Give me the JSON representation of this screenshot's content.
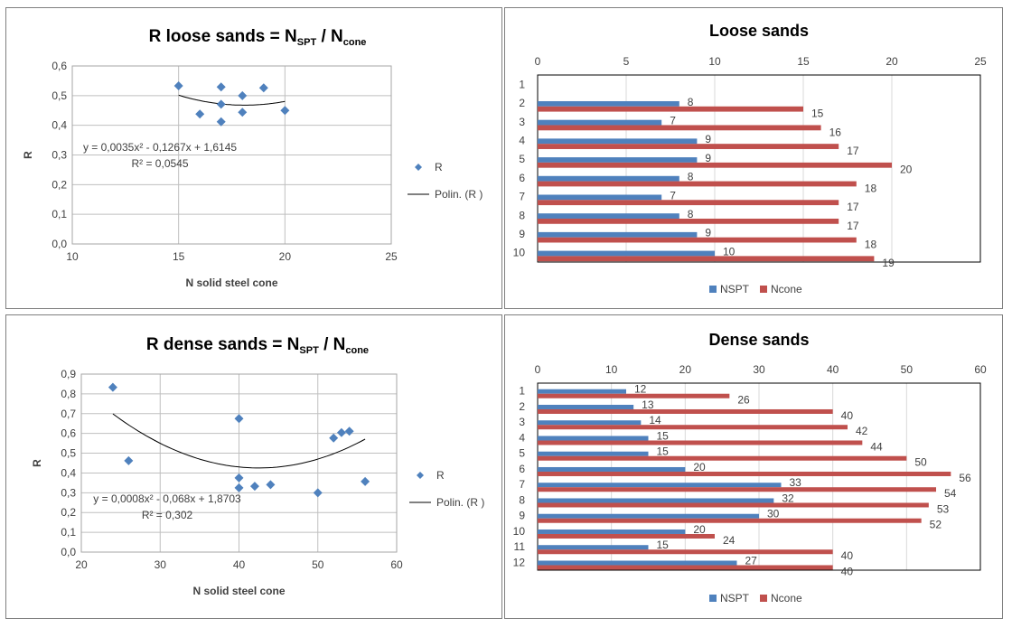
{
  "colors": {
    "nspt": "#4f81bd",
    "ncone": "#c0504d",
    "marker": "#4f81bd",
    "grid": "#bfbfbf",
    "trend": "#000000"
  },
  "chart_data": [
    {
      "type": "scatter",
      "title": {
        "main": "R loose sands = N",
        "sub1": "SPT",
        "mid": " / N",
        "sub2": "cone"
      },
      "xlabel": "N solid steel cone",
      "ylabel": "R",
      "xlim": [
        10,
        25
      ],
      "ylim": [
        0,
        0.6
      ],
      "xticks": [
        "10",
        "15",
        "20",
        "25"
      ],
      "yticks": [
        "0,0",
        "0,1",
        "0,2",
        "0,3",
        "0,4",
        "0,5",
        "0,6"
      ],
      "grid": true,
      "legend": [
        "R",
        "Polin. (R )"
      ],
      "legend_position": "right",
      "points": [
        [
          15,
          0.533
        ],
        [
          16,
          0.438
        ],
        [
          17,
          0.529
        ],
        [
          17,
          0.471
        ],
        [
          17,
          0.412
        ],
        [
          18,
          0.5
        ],
        [
          18,
          0.444
        ],
        [
          19,
          0.526
        ],
        [
          20,
          0.45
        ]
      ],
      "trendline": {
        "coef": [
          0.0035,
          -0.1267,
          1.6145
        ],
        "range": [
          15,
          20
        ],
        "equation": "y = 0,0035x² - 0,1267x + 1,6145",
        "r2": "R² = 0,0545"
      }
    },
    {
      "type": "bar",
      "orientation": "horizontal",
      "title": "Loose sands",
      "categories": [
        "1",
        "2",
        "3",
        "4",
        "5",
        "6",
        "7",
        "8",
        "9",
        "10"
      ],
      "xlim": [
        0,
        25
      ],
      "xticks": [
        "0",
        "5",
        "10",
        "15",
        "20",
        "25"
      ],
      "series": [
        {
          "name": "NSPT",
          "values": [
            null,
            8,
            7,
            9,
            9,
            8,
            7,
            8,
            9,
            10
          ]
        },
        {
          "name": "Ncone",
          "values": [
            null,
            15,
            16,
            17,
            20,
            18,
            17,
            17,
            18,
            19
          ]
        }
      ],
      "legend_position": "bottom"
    },
    {
      "type": "scatter",
      "title": {
        "main": "R dense sands = N",
        "sub1": "SPT",
        "mid": " / N",
        "sub2": "cone"
      },
      "xlabel": "N solid steel cone",
      "ylabel": "R",
      "xlim": [
        20,
        60
      ],
      "ylim": [
        0,
        0.9
      ],
      "xticks": [
        "20",
        "30",
        "40",
        "50",
        "60"
      ],
      "yticks": [
        "0,0",
        "0,1",
        "0,2",
        "0,3",
        "0,4",
        "0,5",
        "0,6",
        "0,7",
        "0,8",
        "0,9"
      ],
      "grid": true,
      "legend": [
        "R",
        "Polin. (R )"
      ],
      "legend_position": "right",
      "points": [
        [
          24,
          0.833
        ],
        [
          26,
          0.462
        ],
        [
          40,
          0.675
        ],
        [
          40,
          0.375
        ],
        [
          40,
          0.325
        ],
        [
          42,
          0.333
        ],
        [
          44,
          0.341
        ],
        [
          50,
          0.3
        ],
        [
          52,
          0.577
        ],
        [
          53,
          0.604
        ],
        [
          54,
          0.611
        ],
        [
          56,
          0.357
        ]
      ],
      "trendline": {
        "coef": [
          0.0008,
          -0.068,
          1.8703
        ],
        "range": [
          24,
          56
        ],
        "equation": "y = 0,0008x² - 0,068x + 1,8703",
        "r2": "R² = 0,302"
      }
    },
    {
      "type": "bar",
      "orientation": "horizontal",
      "title": "Dense sands",
      "categories": [
        "1",
        "2",
        "3",
        "4",
        "5",
        "6",
        "7",
        "8",
        "9",
        "10",
        "11",
        "12"
      ],
      "xlim": [
        0,
        60
      ],
      "xticks": [
        "0",
        "10",
        "20",
        "30",
        "40",
        "50",
        "60"
      ],
      "series": [
        {
          "name": "NSPT",
          "values": [
            12,
            13,
            14,
            15,
            15,
            20,
            33,
            32,
            30,
            20,
            15,
            27
          ]
        },
        {
          "name": "Ncone",
          "values": [
            26,
            40,
            42,
            44,
            50,
            56,
            54,
            53,
            52,
            24,
            40,
            40
          ]
        }
      ],
      "legend_position": "bottom"
    }
  ]
}
